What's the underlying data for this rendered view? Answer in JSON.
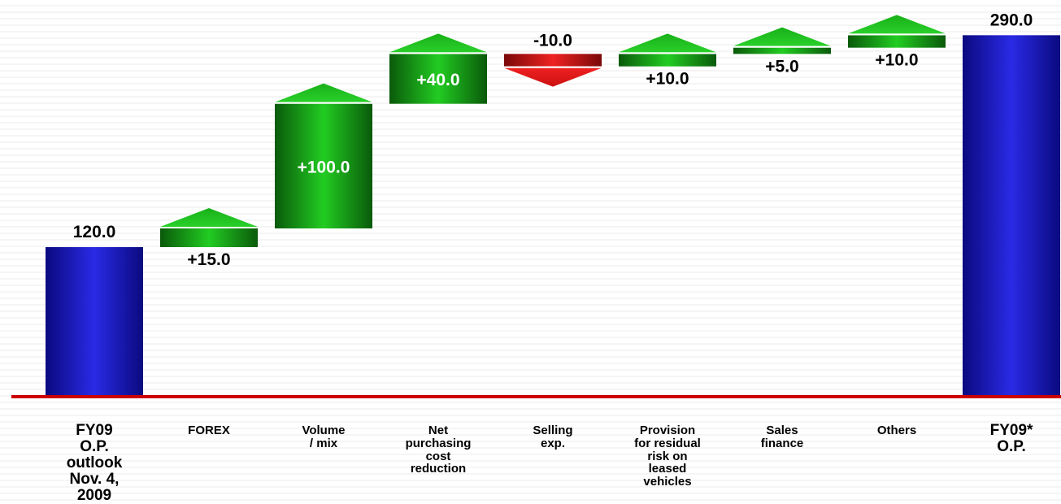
{
  "chart_data": {
    "type": "waterfall",
    "categories": [
      "FY09\nO.P.\noutlook\nNov. 4,\n2009",
      "FOREX",
      "Volume\n/ mix",
      "Net\npurchasing\ncost\nreduction",
      "Selling\nexp.",
      "Provision\nfor residual\nrisk on\nleased\nvehicles",
      "Sales\nfinance",
      "Others",
      "FY09*\nO.P."
    ],
    "values": [
      120.0,
      15.0,
      100.0,
      40.0,
      -10.0,
      10.0,
      5.0,
      10.0,
      290.0
    ],
    "kinds": [
      "total",
      "delta",
      "delta",
      "delta",
      "delta",
      "delta",
      "delta",
      "delta",
      "total"
    ],
    "labels": [
      "120.0",
      "+15.0",
      "+100.0",
      "+40.0",
      "-10.0",
      "+10.0",
      "+5.0",
      "+10.0",
      "290.0"
    ],
    "ylim": [
      0,
      300
    ],
    "title": "",
    "xlabel": "",
    "ylabel": "",
    "grid": false,
    "colors": {
      "total": "#1010c8",
      "increase": "#10a010",
      "decrease": "#c81010",
      "baseline": "#cc0000"
    }
  }
}
